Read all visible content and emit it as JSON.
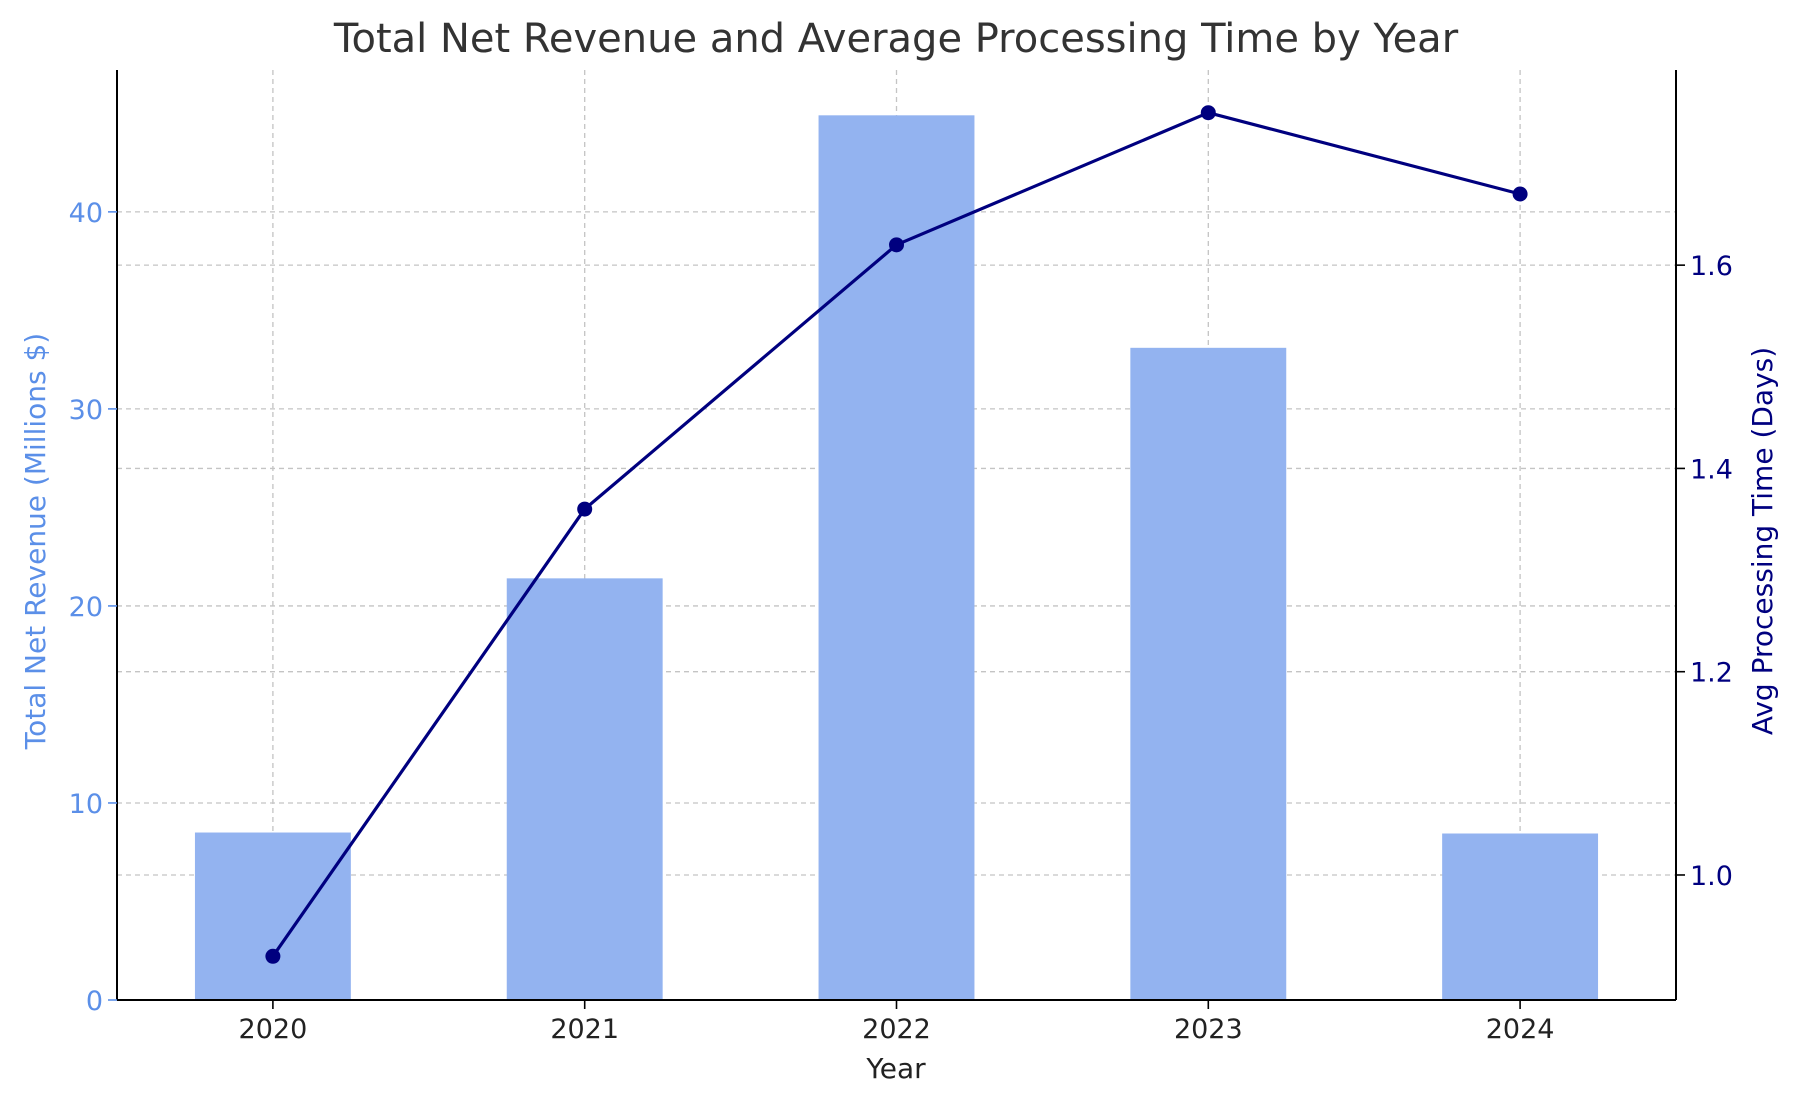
{
  "chart_data": {
    "type": "bar",
    "title": "Total Net Revenue and Average Processing Time by Year",
    "xlabel": "Year",
    "ylabel": "Total Net Revenue (Millions $)",
    "y2label": "Avg Processing Time (Days)",
    "categories": [
      "2020",
      "2021",
      "2022",
      "2023",
      "2024"
    ],
    "series": [
      {
        "type": "bar",
        "axis": "left",
        "values": [
          8.5,
          21.4,
          44.9,
          33.1,
          8.45
        ]
      },
      {
        "type": "line",
        "axis": "right",
        "values": [
          0.92,
          1.36,
          1.62,
          1.75,
          1.67
        ]
      }
    ],
    "ylim": [
      0,
      47.2
    ],
    "y2lim": [
      0.877,
      1.792
    ],
    "yticks": [
      0,
      10,
      20,
      30,
      40
    ],
    "y2ticks": [
      1.0,
      1.2,
      1.4,
      1.6
    ],
    "ytick_labels": [
      "0",
      "10",
      "20",
      "30",
      "40"
    ],
    "y2tick_labels": [
      "1.0",
      "1.2",
      "1.4",
      "1.6"
    ],
    "grid": true,
    "colors": {
      "bar": "#93b3f0",
      "line": "#00007f",
      "left_axis": "#5b8fe8",
      "right_axis": "#00007f",
      "title": "#333333",
      "grid": "#c4c4c4"
    }
  }
}
